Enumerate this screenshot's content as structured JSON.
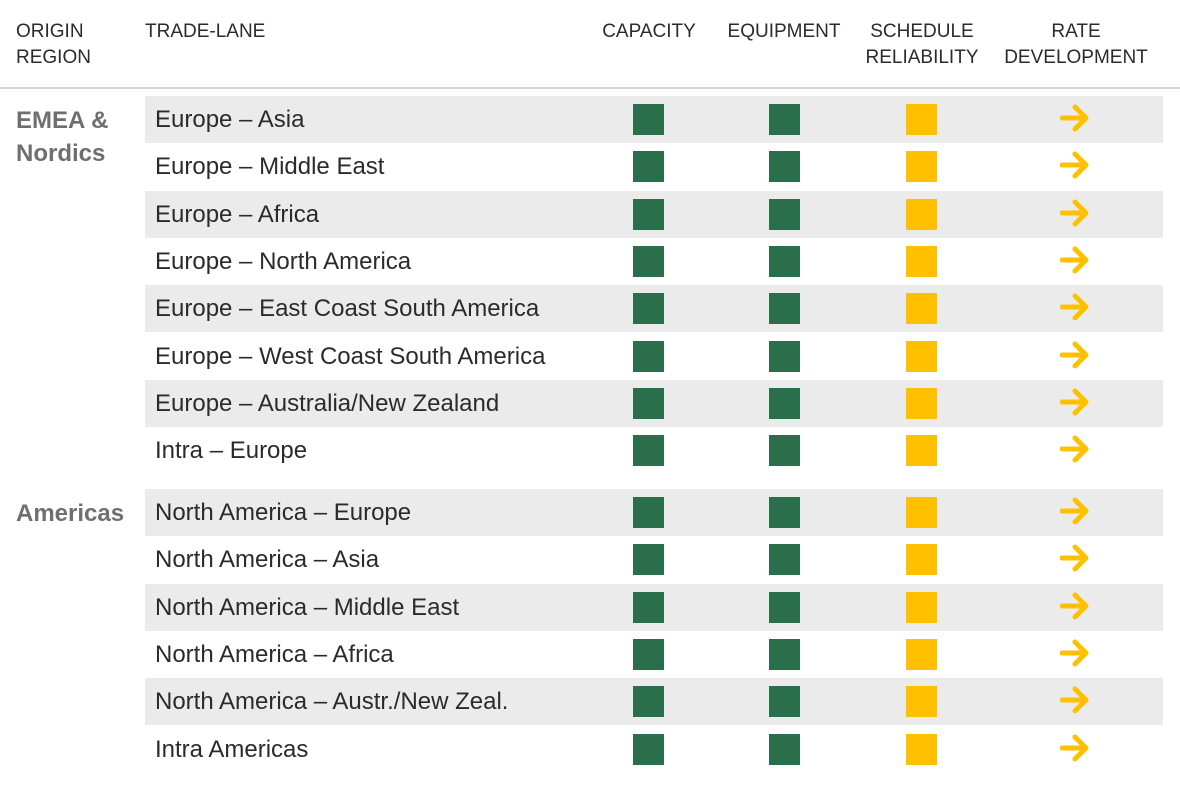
{
  "header": {
    "origin_region": "ORIGIN\nREGION",
    "trade_lane": "TRADE-LANE",
    "capacity": "CAPACITY",
    "equipment": "EQUIPMENT",
    "schedule_reliability": "SCHEDULE\nRELIABILITY",
    "rate_development": "RATE\nDEVELOPMENT"
  },
  "colors": {
    "green_indicator": "#2a6e4b",
    "amber_indicator": "#ffc000",
    "arrow": "#ffc000",
    "region_text": "#6f6f6f",
    "row_shade": "#ebebeb"
  },
  "status_legend": {
    "capacity": "green",
    "equipment": "green",
    "schedule_reliability": "amber",
    "rate_development": "arrow-right-icon (stable)"
  },
  "regions": [
    {
      "name": "EMEA &\nNordics",
      "lanes": [
        "Europe – Asia",
        "Europe – Middle East",
        "Europe – Africa",
        "Europe – North America",
        "Europe – East Coast South America",
        "Europe – West Coast South America",
        "Europe – Australia/New Zealand",
        "Intra – Europe"
      ]
    },
    {
      "name": "Americas",
      "lanes": [
        "North America – Europe",
        "North America – Asia",
        "North America – Middle East",
        "North America – Africa",
        "North America – Austr./New Zeal.",
        "Intra Americas"
      ]
    }
  ]
}
